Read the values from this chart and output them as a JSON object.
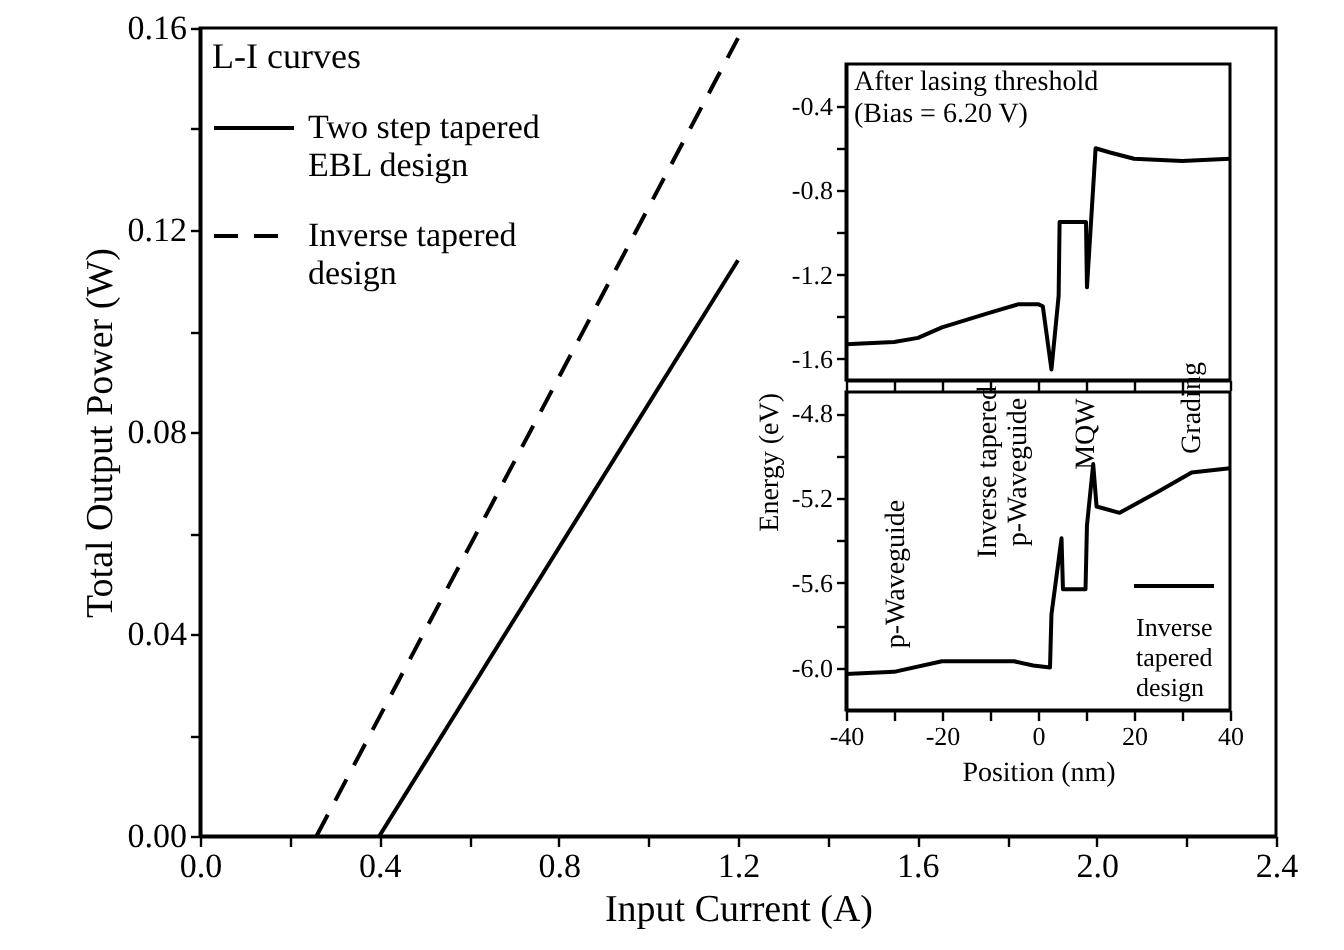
{
  "chart_data": [
    {
      "type": "line",
      "xlabel": "Input Current (A)",
      "ylabel": "Total Output Power (W)",
      "xlim": [
        0,
        2.4
      ],
      "ylim": [
        0,
        0.16
      ],
      "xticks": [
        {
          "value": 0,
          "label": "0.0"
        },
        {
          "value": 0.2,
          "label": null
        },
        0.4,
        {
          "value": 0.6,
          "label": null
        },
        0.8,
        {
          "value": 1.0,
          "label": null
        },
        1.2,
        {
          "value": 1.4,
          "label": null
        },
        1.6,
        {
          "value": 1.8,
          "label": null
        },
        {
          "value": 2.0,
          "label": "2.0"
        },
        {
          "value": 2.2,
          "label": null
        },
        2.4
      ],
      "yticks": [
        {
          "value": 0,
          "label": "0.00"
        },
        {
          "value": 0.02,
          "label": null
        },
        0.04,
        {
          "value": 0.06,
          "label": null
        },
        0.08,
        {
          "value": 0.1,
          "label": null
        },
        0.12,
        {
          "value": 0.14,
          "label": null
        },
        0.16
      ],
      "legend": "top left",
      "legend_title": "L-I curves",
      "grid": false,
      "series": [
        {
          "name": "Two step tapered EBL design",
          "color": "#000000",
          "line_style": "solid",
          "x": [
            0.4,
            1.2
          ],
          "values": [
            0,
            0.114
          ]
        },
        {
          "name": "Inverse tapered design",
          "color": "#000000",
          "line_style": "dashed",
          "x": [
            0.26,
            1.2
          ],
          "values": [
            0,
            0.158
          ]
        }
      ]
    },
    {
      "type": "line",
      "annotations": [
        "After lasing threshold",
        "(Bias = 6.20 V)"
      ],
      "xlim": [
        -40,
        40
      ],
      "ylim": [
        -1.7,
        -0.2
      ],
      "xticks": [
        -40,
        {
          "value": -30,
          "label": null
        },
        -20,
        {
          "value": -10,
          "label": null
        },
        0,
        {
          "value": 10,
          "label": null
        },
        20,
        {
          "value": 30,
          "label": null
        },
        40
      ],
      "yticks": [
        -1.6,
        {
          "value": -1.4,
          "label": null
        },
        -1.2,
        {
          "value": -1.0,
          "label": null
        },
        -0.8,
        {
          "value": -0.6,
          "label": null
        },
        -0.4
      ],
      "tick_labels": "y",
      "grid": false,
      "series": [
        {
          "color": "#000000",
          "line_style": "solid",
          "x": [
            -40,
            -30,
            -25,
            -20,
            -10,
            -4,
            0,
            1,
            2.8,
            4.3,
            4.5,
            10,
            10.2,
            12,
            15,
            20,
            30,
            40
          ],
          "values": [
            -1.53,
            -1.52,
            -1.5,
            -1.45,
            -1.38,
            -1.34,
            -1.34,
            -1.35,
            -1.65,
            -1.3,
            -0.95,
            -0.95,
            -1.26,
            -0.6,
            -0.62,
            -0.65,
            -0.66,
            -0.65
          ]
        }
      ]
    },
    {
      "type": "line",
      "xlabel": "Position (nm)",
      "ylabel": "Energy (eV)",
      "xlim": [
        -40,
        40
      ],
      "ylim": [
        -6.2,
        -4.7
      ],
      "xticks": [
        -40,
        {
          "value": -30,
          "label": null
        },
        -20,
        {
          "value": -10,
          "label": null
        },
        0,
        {
          "value": 10,
          "label": null
        },
        20,
        {
          "value": 30,
          "label": null
        },
        40
      ],
      "yticks": [
        {
          "value": -6.0,
          "label": "-6.0"
        },
        {
          "value": -5.8,
          "label": null
        },
        -5.6,
        {
          "value": -5.4,
          "label": null
        },
        -5.2,
        {
          "value": -5.0,
          "label": null
        },
        -4.8
      ],
      "legend": "bottom right",
      "grid": false,
      "annotations": [
        "p-Waveguide",
        "Inverse tapered p-Waveguide",
        "MQW",
        "Grading"
      ],
      "series": [
        {
          "name": "Inverse tapered design",
          "color": "#000000",
          "line_style": "solid",
          "x": [
            -40,
            -30,
            -20,
            -5,
            -1,
            2.5,
            2.8,
            4.9,
            5.2,
            9.9,
            10.2,
            11.5,
            12.2,
            17,
            25,
            32,
            40
          ],
          "values": [
            -6.03,
            -6.02,
            -5.97,
            -5.97,
            -5.99,
            -6.0,
            -5.75,
            -5.39,
            -5.63,
            -5.63,
            -5.33,
            -5.04,
            -5.24,
            -5.27,
            -5.17,
            -5.08,
            -5.06
          ]
        }
      ]
    }
  ]
}
